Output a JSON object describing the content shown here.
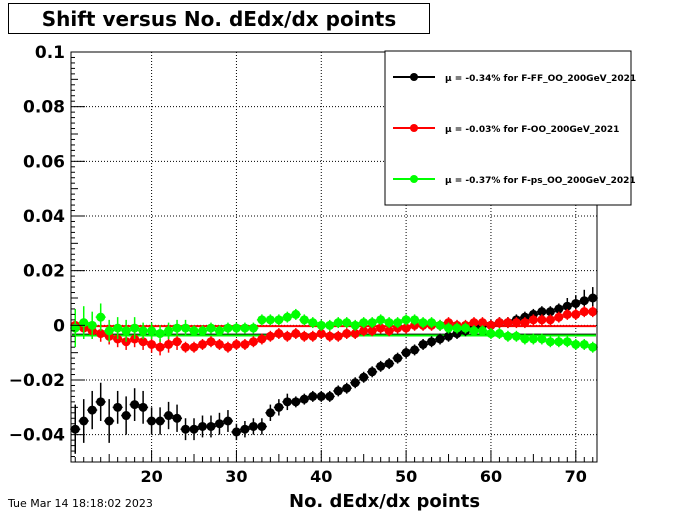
{
  "timestamp": "Tue Mar 14 18:18:02 2023",
  "chart_data": {
    "type": "scatter",
    "title": "Shift versus No. dEdx/dx points",
    "xlabel": "No. dEdx/dx points",
    "ylabel": "",
    "xlim": [
      10.5,
      72.5
    ],
    "ylim": [
      -0.05,
      0.1
    ],
    "xticks": [
      20,
      30,
      40,
      50,
      60,
      70
    ],
    "yticks": [
      -0.04,
      -0.02,
      0,
      0.02,
      0.04,
      0.06,
      0.08,
      0.1
    ],
    "ytick_labels": [
      "−0.04",
      "−0.02",
      "0",
      "0.02",
      "0.04",
      "0.06",
      "0.08",
      "0.1"
    ],
    "grid": true,
    "legend_position": "top-right",
    "series": [
      {
        "name": "μ = -0.34% for F-FF_OO_200GeV_2021",
        "color": "#000000",
        "mean": -0.0034,
        "x": [
          11,
          12,
          13,
          14,
          15,
          16,
          17,
          18,
          19,
          20,
          21,
          22,
          23,
          24,
          25,
          26,
          27,
          28,
          29,
          30,
          31,
          32,
          33,
          34,
          35,
          36,
          37,
          38,
          39,
          40,
          41,
          42,
          43,
          44,
          45,
          46,
          47,
          48,
          49,
          50,
          51,
          52,
          53,
          54,
          55,
          56,
          57,
          58,
          59,
          60,
          61,
          62,
          63,
          64,
          65,
          66,
          67,
          68,
          69,
          70,
          71,
          72
        ],
        "y": [
          -0.038,
          -0.035,
          -0.031,
          -0.028,
          -0.035,
          -0.03,
          -0.033,
          -0.029,
          -0.03,
          -0.035,
          -0.035,
          -0.033,
          -0.034,
          -0.038,
          -0.038,
          -0.037,
          -0.037,
          -0.036,
          -0.035,
          -0.039,
          -0.038,
          -0.037,
          -0.037,
          -0.032,
          -0.03,
          -0.028,
          -0.028,
          -0.027,
          -0.026,
          -0.026,
          -0.026,
          -0.024,
          -0.023,
          -0.021,
          -0.019,
          -0.017,
          -0.015,
          -0.014,
          -0.012,
          -0.01,
          -0.009,
          -0.007,
          -0.006,
          -0.005,
          -0.004,
          -0.003,
          -0.002,
          -0.001,
          0.0,
          0.0,
          0.001,
          0.001,
          0.002,
          0.003,
          0.004,
          0.005,
          0.005,
          0.006,
          0.007,
          0.008,
          0.009,
          0.01
        ],
        "err": [
          0.009,
          0.008,
          0.007,
          0.007,
          0.008,
          0.006,
          0.007,
          0.006,
          0.006,
          0.005,
          0.005,
          0.005,
          0.005,
          0.004,
          0.004,
          0.004,
          0.004,
          0.004,
          0.004,
          0.003,
          0.003,
          0.003,
          0.003,
          0.003,
          0.003,
          0.003,
          0.002,
          0.002,
          0.002,
          0.002,
          0.002,
          0.002,
          0.002,
          0.002,
          0.002,
          0.002,
          0.002,
          0.002,
          0.002,
          0.002,
          0.002,
          0.002,
          0.002,
          0.002,
          0.002,
          0.002,
          0.002,
          0.002,
          0.002,
          0.002,
          0.002,
          0.002,
          0.002,
          0.002,
          0.002,
          0.002,
          0.002,
          0.002,
          0.003,
          0.003,
          0.004,
          0.004
        ]
      },
      {
        "name": "μ = -0.03% for F-OO_200GeV_2021",
        "color": "#ff0000",
        "mean": -0.0003,
        "x": [
          11,
          12,
          13,
          14,
          15,
          16,
          17,
          18,
          19,
          20,
          21,
          22,
          23,
          24,
          25,
          26,
          27,
          28,
          29,
          30,
          31,
          32,
          33,
          34,
          35,
          36,
          37,
          38,
          39,
          40,
          41,
          42,
          43,
          44,
          45,
          46,
          47,
          48,
          49,
          50,
          51,
          52,
          53,
          54,
          55,
          56,
          57,
          58,
          59,
          60,
          61,
          62,
          63,
          64,
          65,
          66,
          67,
          68,
          69,
          70,
          71,
          72
        ],
        "y": [
          0.0,
          -0.001,
          -0.002,
          -0.003,
          -0.004,
          -0.005,
          -0.006,
          -0.005,
          -0.006,
          -0.007,
          -0.008,
          -0.007,
          -0.006,
          -0.008,
          -0.008,
          -0.007,
          -0.006,
          -0.007,
          -0.008,
          -0.007,
          -0.007,
          -0.006,
          -0.005,
          -0.004,
          -0.003,
          -0.004,
          -0.003,
          -0.004,
          -0.004,
          -0.003,
          -0.004,
          -0.004,
          -0.003,
          -0.003,
          -0.002,
          -0.002,
          -0.001,
          -0.002,
          -0.001,
          -0.001,
          0.0,
          0.0,
          0.0,
          0.0,
          0.001,
          0.0,
          0.0,
          0.001,
          0.001,
          0.0,
          0.001,
          0.001,
          0.001,
          0.001,
          0.002,
          0.002,
          0.002,
          0.003,
          0.004,
          0.004,
          0.005,
          0.005
        ],
        "err": [
          0.004,
          0.003,
          0.003,
          0.003,
          0.003,
          0.003,
          0.003,
          0.003,
          0.003,
          0.003,
          0.003,
          0.003,
          0.003,
          0.002,
          0.002,
          0.002,
          0.002,
          0.002,
          0.002,
          0.002,
          0.002,
          0.002,
          0.002,
          0.002,
          0.002,
          0.002,
          0.002,
          0.002,
          0.002,
          0.002,
          0.002,
          0.002,
          0.002,
          0.002,
          0.002,
          0.002,
          0.002,
          0.002,
          0.002,
          0.002,
          0.002,
          0.002,
          0.002,
          0.002,
          0.002,
          0.002,
          0.002,
          0.002,
          0.002,
          0.002,
          0.002,
          0.002,
          0.002,
          0.002,
          0.002,
          0.002,
          0.002,
          0.002,
          0.002,
          0.002,
          0.002,
          0.002
        ]
      },
      {
        "name": "μ = -0.37% for F-ps_OO_200GeV_2021",
        "color": "#00ff00",
        "mean": -0.0037,
        "x": [
          11,
          12,
          13,
          14,
          15,
          16,
          17,
          18,
          19,
          20,
          21,
          22,
          23,
          24,
          25,
          26,
          27,
          28,
          29,
          30,
          31,
          32,
          33,
          34,
          35,
          36,
          37,
          38,
          39,
          40,
          41,
          42,
          43,
          44,
          45,
          46,
          47,
          48,
          49,
          50,
          51,
          52,
          53,
          54,
          55,
          56,
          57,
          58,
          59,
          60,
          61,
          62,
          63,
          64,
          65,
          66,
          67,
          68,
          69,
          70,
          71,
          72
        ],
        "y": [
          -0.001,
          0.001,
          0.0,
          0.003,
          -0.002,
          -0.001,
          -0.002,
          -0.001,
          -0.002,
          -0.002,
          -0.003,
          -0.002,
          -0.001,
          -0.001,
          -0.002,
          -0.002,
          -0.001,
          -0.002,
          -0.001,
          -0.001,
          -0.001,
          -0.001,
          0.002,
          0.002,
          0.002,
          0.003,
          0.004,
          0.002,
          0.001,
          0.0,
          0.0,
          0.001,
          0.001,
          0.0,
          0.001,
          0.001,
          0.002,
          0.001,
          0.001,
          0.002,
          0.002,
          0.001,
          0.001,
          0.0,
          -0.001,
          -0.001,
          -0.001,
          -0.002,
          -0.002,
          -0.003,
          -0.003,
          -0.004,
          -0.004,
          -0.005,
          -0.005,
          -0.005,
          -0.006,
          -0.006,
          -0.006,
          -0.007,
          -0.007,
          -0.008
        ],
        "err": [
          0.007,
          0.006,
          0.005,
          0.005,
          0.004,
          0.004,
          0.004,
          0.004,
          0.003,
          0.003,
          0.003,
          0.003,
          0.003,
          0.003,
          0.002,
          0.002,
          0.002,
          0.002,
          0.002,
          0.002,
          0.002,
          0.002,
          0.002,
          0.002,
          0.002,
          0.002,
          0.002,
          0.002,
          0.002,
          0.002,
          0.002,
          0.002,
          0.002,
          0.002,
          0.002,
          0.002,
          0.002,
          0.002,
          0.002,
          0.002,
          0.002,
          0.002,
          0.002,
          0.002,
          0.002,
          0.002,
          0.002,
          0.002,
          0.002,
          0.002,
          0.002,
          0.002,
          0.002,
          0.002,
          0.002,
          0.002,
          0.002,
          0.002,
          0.002,
          0.002,
          0.002,
          0.002
        ]
      }
    ]
  }
}
